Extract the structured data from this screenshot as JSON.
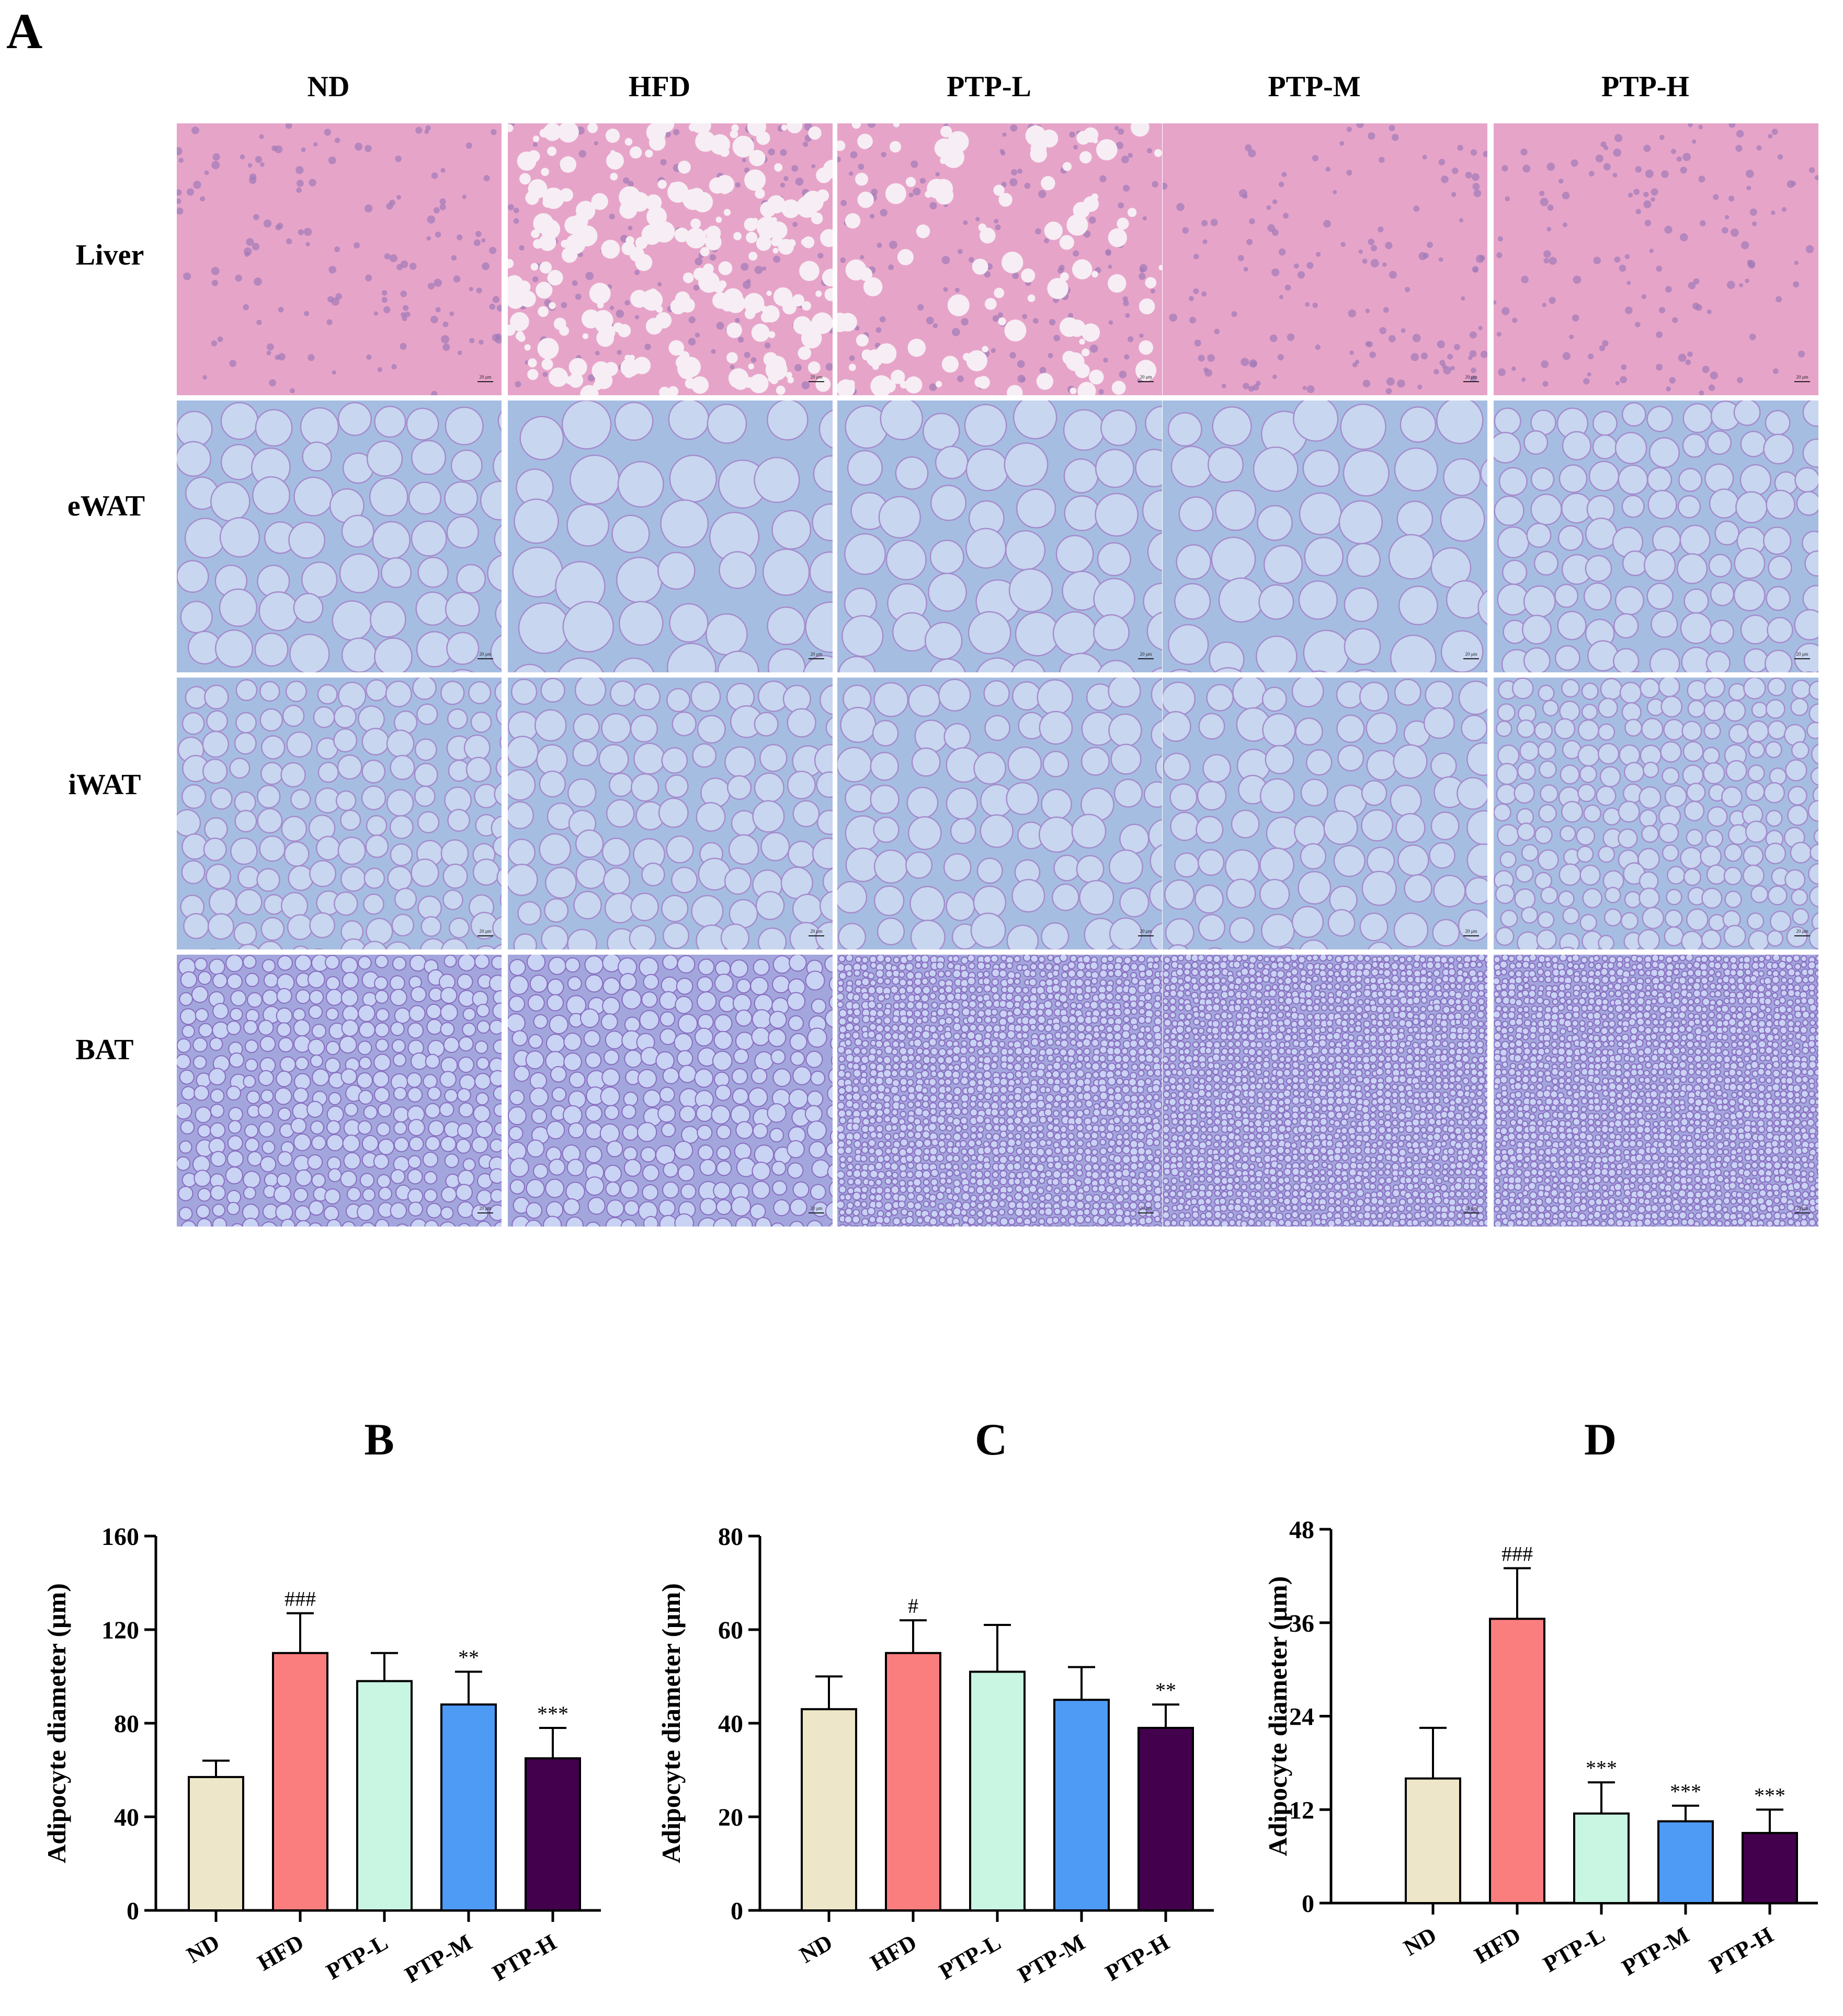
{
  "panel_a": {
    "letter": "A",
    "columns": [
      "ND",
      "HFD",
      "PTP-L",
      "PTP-M",
      "PTP-H"
    ],
    "rows": [
      "Liver",
      "eWAT",
      "iWAT",
      "BAT"
    ],
    "scale_bar_text": "20 μm"
  },
  "colors": {
    "ND": "#ede6c8",
    "HFD": "#fb7e7f",
    "PTP-L": "#c9f5e3",
    "PTP-M": "#4e9bf6",
    "PTP-H": "#43004d"
  },
  "chart_data": [
    {
      "type": "bar",
      "panel": "B",
      "categories": [
        "ND",
        "HFD",
        "PTP-L",
        "PTP-M",
        "PTP-H"
      ],
      "values": [
        57,
        110,
        98,
        88,
        65
      ],
      "errors": [
        7,
        17,
        12,
        14,
        13
      ],
      "annotations": [
        "",
        "###",
        "",
        "**",
        "***"
      ],
      "ylabel": "Adipocyte diameter (μm)",
      "ylim": [
        0,
        160
      ],
      "yticks": [
        0,
        40,
        80,
        120,
        160
      ]
    },
    {
      "type": "bar",
      "panel": "C",
      "categories": [
        "ND",
        "HFD",
        "PTP-L",
        "PTP-M",
        "PTP-H"
      ],
      "values": [
        43,
        55,
        51,
        45,
        39
      ],
      "errors": [
        7,
        7,
        10,
        7,
        5
      ],
      "annotations": [
        "",
        "#",
        "",
        "",
        "**"
      ],
      "ylabel": "Adipocyte diameter (μm)",
      "ylim": [
        0,
        80
      ],
      "yticks": [
        0,
        20,
        40,
        60,
        80
      ]
    },
    {
      "type": "bar",
      "panel": "D",
      "categories": [
        "ND",
        "HFD",
        "PTP-L",
        "PTP-M",
        "PTP-H"
      ],
      "values": [
        16,
        36.5,
        11.5,
        10.5,
        9
      ],
      "errors": [
        6.5,
        6.5,
        4,
        2,
        3
      ],
      "annotations": [
        "",
        "###",
        "***",
        "***",
        "***"
      ],
      "ylabel": "Adipocyte diameter (μm)",
      "ylim": [
        0,
        48
      ],
      "yticks": [
        0,
        12,
        24,
        36,
        48
      ]
    }
  ]
}
